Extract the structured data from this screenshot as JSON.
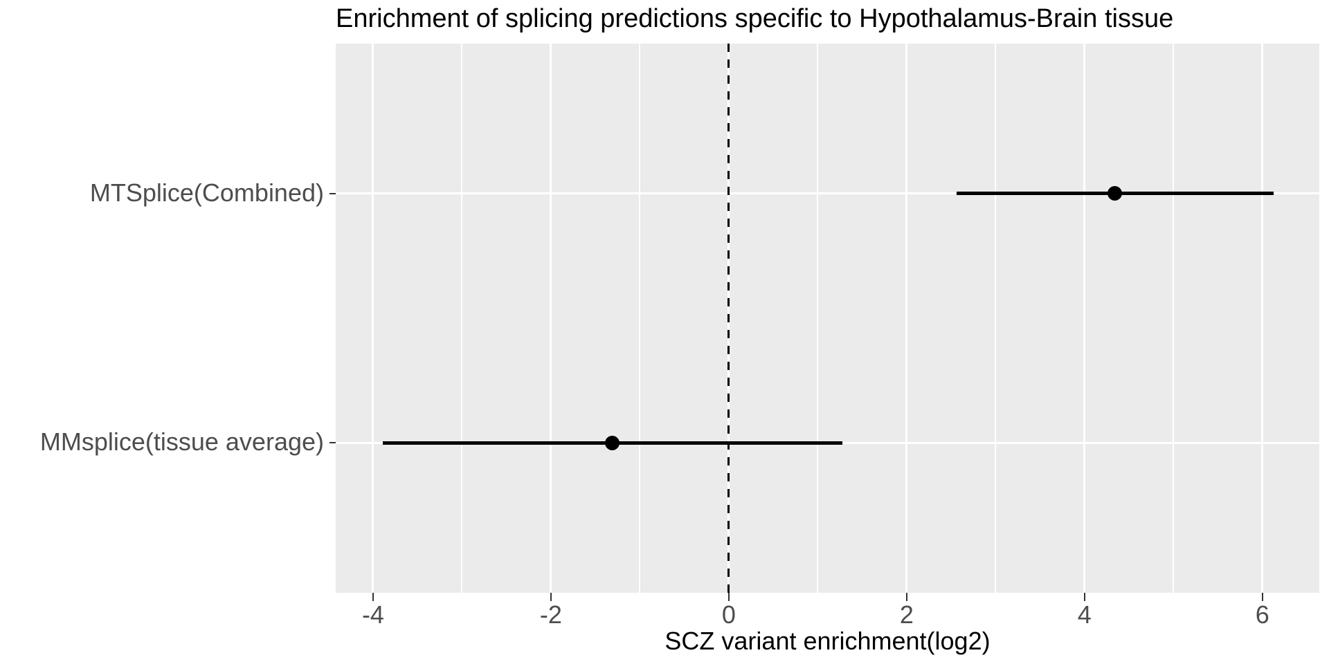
{
  "chart_data": {
    "type": "pointrange",
    "orientation": "horizontal",
    "title": "Enrichment of splicing predictions specific to Hypothalamus-Brain tissue",
    "xlabel": "SCZ variant enrichment(log2)",
    "ylabel": "",
    "categories": [
      "MTSplice(Combined)",
      "MMsplice(tissue average)"
    ],
    "points": [
      {
        "label": "MTSplice(Combined)",
        "estimate": 4.34,
        "ci_low": 2.56,
        "ci_high": 6.13
      },
      {
        "label": "MMsplice(tissue average)",
        "estimate": -1.31,
        "ci_low": -3.89,
        "ci_high": 1.28
      }
    ],
    "x_ticks": [
      -4,
      -2,
      0,
      2,
      4,
      6
    ],
    "x_minor_ticks": [
      -3,
      -1,
      1,
      3,
      5
    ],
    "xlim": [
      -4.42,
      6.64
    ],
    "reference_line": {
      "x": 0,
      "style": "dashed"
    },
    "grid": true,
    "legend": "none"
  },
  "colors": {
    "background": "#FFFFFF",
    "panel_background": "#EBEBEB",
    "gridline": "#FFFFFF",
    "point": "#000000",
    "range_line": "#000000",
    "reference_line": "#000000",
    "title_text": "#000000",
    "axis_text": "#4D4D4D",
    "tick_mark": "#333333"
  }
}
